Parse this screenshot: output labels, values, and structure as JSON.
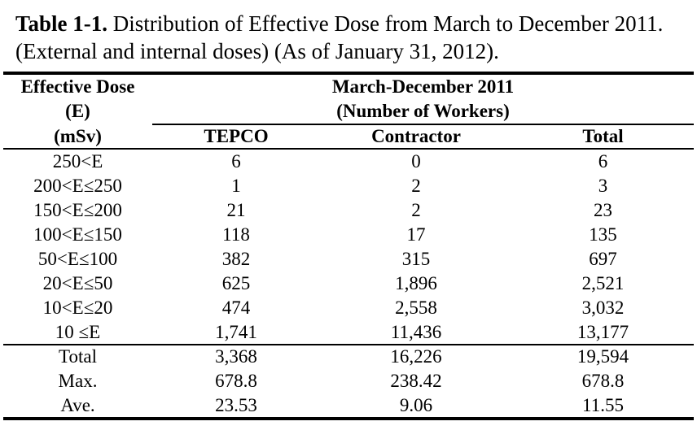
{
  "caption": {
    "label": "Table 1-1.",
    "text": " Distribution of Effective Dose from March to December 2011. (External and internal doses) (As of January 31, 2012)."
  },
  "header": {
    "first_col_line1": "Effective Dose",
    "first_col_line2": "(E)",
    "first_col_line3": "(mSv)",
    "group_line1": "March-December 2011",
    "group_line2": "(Number of Workers)",
    "col_tepco": "TEPCO",
    "col_contractor": "Contractor",
    "col_total": "Total"
  },
  "rows": [
    {
      "range": "250<E",
      "tepco": "6",
      "contractor": "0",
      "total": "6"
    },
    {
      "range": "200<E≤250",
      "tepco": "1",
      "contractor": "2",
      "total": "3"
    },
    {
      "range": "150<E≤200",
      "tepco": "21",
      "contractor": "2",
      "total": "23"
    },
    {
      "range": "100<E≤150",
      "tepco": "118",
      "contractor": "17",
      "total": "135"
    },
    {
      "range": "50<E≤100",
      "tepco": "382",
      "contractor": "315",
      "total": "697"
    },
    {
      "range": "20<E≤50",
      "tepco": "625",
      "contractor": "1,896",
      "total": "2,521"
    },
    {
      "range": "10<E≤20",
      "tepco": "474",
      "contractor": "2,558",
      "total": "3,032"
    },
    {
      "range": "10 ≤E",
      "tepco": "1,741",
      "contractor": "11,436",
      "total": "13,177"
    }
  ],
  "summary": [
    {
      "label": "Total",
      "tepco": "3,368",
      "contractor": "16,226",
      "total": "19,594"
    },
    {
      "label": "Max.",
      "tepco": "678.8",
      "contractor": "238.42",
      "total": "678.8"
    },
    {
      "label": "Ave.",
      "tepco": "23.53",
      "contractor": "9.06",
      "total": "11.55"
    }
  ]
}
